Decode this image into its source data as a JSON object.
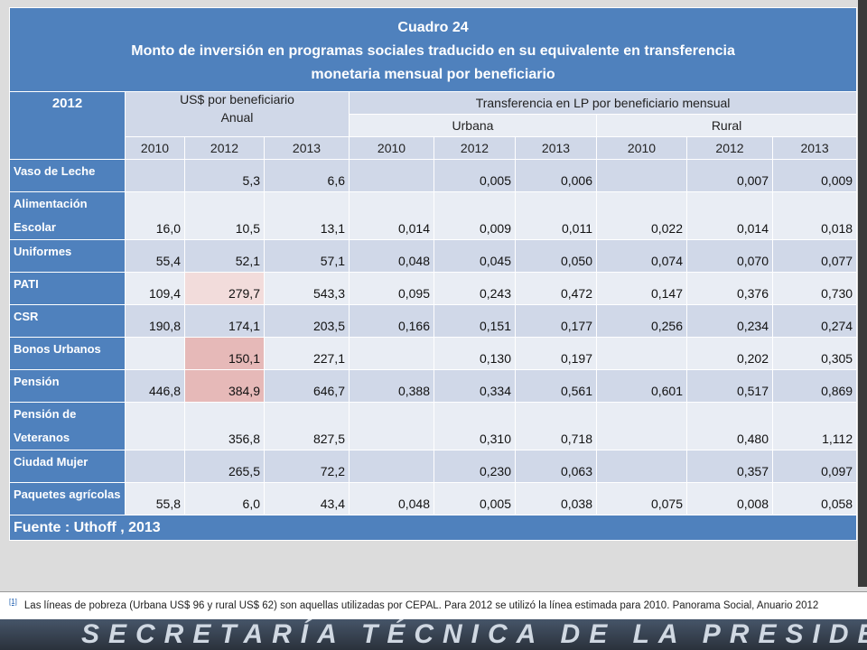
{
  "title": {
    "line1": "Cuadro 24",
    "line2": "Monto de inversión en programas sociales traducido en su equivalente en transferencia",
    "line3": "monetaria mensual por beneficiario"
  },
  "header": {
    "corner": "2012",
    "group1": "US$ por beneficiario",
    "group1_sub": "Anual",
    "group2": "Transferencia en LP por beneficiario mensual",
    "urban": "Urbana",
    "rural": "Rural",
    "years": [
      "2010",
      "2012",
      "2013",
      "2010",
      "2012",
      "2013",
      "2010",
      "2012",
      "2013"
    ]
  },
  "rows": [
    {
      "label": "Vaso de Leche",
      "cells": [
        null,
        "5,3",
        "6,6",
        null,
        "0,005",
        "0,006",
        null,
        "0,007",
        "0,009"
      ]
    },
    {
      "label": "Alimentación Escolar",
      "cells": [
        "16,0",
        "10,5",
        "13,1",
        "0,014",
        "0,009",
        "0,011",
        "0,022",
        "0,014",
        "0,018"
      ]
    },
    {
      "label": "Uniformes",
      "cells": [
        "55,4",
        "52,1",
        "57,1",
        "0,048",
        "0,045",
        "0,050",
        "0,074",
        "0,070",
        "0,077"
      ]
    },
    {
      "label": "PATI",
      "cells": [
        "109,4",
        "279,7",
        "543,3",
        "0,095",
        "0,243",
        "0,472",
        "0,147",
        "0,376",
        "0,730"
      ]
    },
    {
      "label": "CSR",
      "cells": [
        "190,8",
        "174,1",
        "203,5",
        "0,166",
        "0,151",
        "0,177",
        "0,256",
        "0,234",
        "0,274"
      ]
    },
    {
      "label": "Bonos Urbanos",
      "cells": [
        null,
        "150,1",
        "227,1",
        null,
        "0,130",
        "0,197",
        null,
        "0,202",
        "0,305"
      ]
    },
    {
      "label": "Pensión",
      "cells": [
        "446,8",
        "384,9",
        "646,7",
        "0,388",
        "0,334",
        "0,561",
        "0,601",
        "0,517",
        "0,869"
      ]
    },
    {
      "label": "Pensión de Veteranos",
      "cells": [
        null,
        "356,8",
        "827,5",
        null,
        "0,310",
        "0,718",
        null,
        "0,480",
        "1,112"
      ]
    },
    {
      "label": "Ciudad Mujer",
      "cells": [
        null,
        "265,5",
        "72,2",
        null,
        "0,230",
        "0,063",
        null,
        "0,357",
        "0,097"
      ]
    },
    {
      "label": "Paquetes agrícolas",
      "cells": [
        "55,8",
        "6,0",
        "43,4",
        "0,048",
        "0,005",
        "0,038",
        "0,075",
        "0,008",
        "0,058"
      ]
    }
  ],
  "highlights": [
    {
      "row": 3,
      "col": 1,
      "color": "#f2dcdb"
    },
    {
      "row": 5,
      "col": 1,
      "color": "#e6b9b8"
    },
    {
      "row": 6,
      "col": 1,
      "color": "#e6b9b8"
    }
  ],
  "source": "Fuente : Uthoff , 2013",
  "footnote": {
    "marker": "[1]",
    "text": "Las líneas de pobreza (Urbana US$ 96 y rural US$ 62) son aquellas utilizadas por CEPAL. Para 2012  se utilizó la línea estimada para 2010.  Panorama Social, Anuario 2012"
  },
  "banner": "SECRETARÍA TÉCNICA DE LA PRESIDENCIA"
}
